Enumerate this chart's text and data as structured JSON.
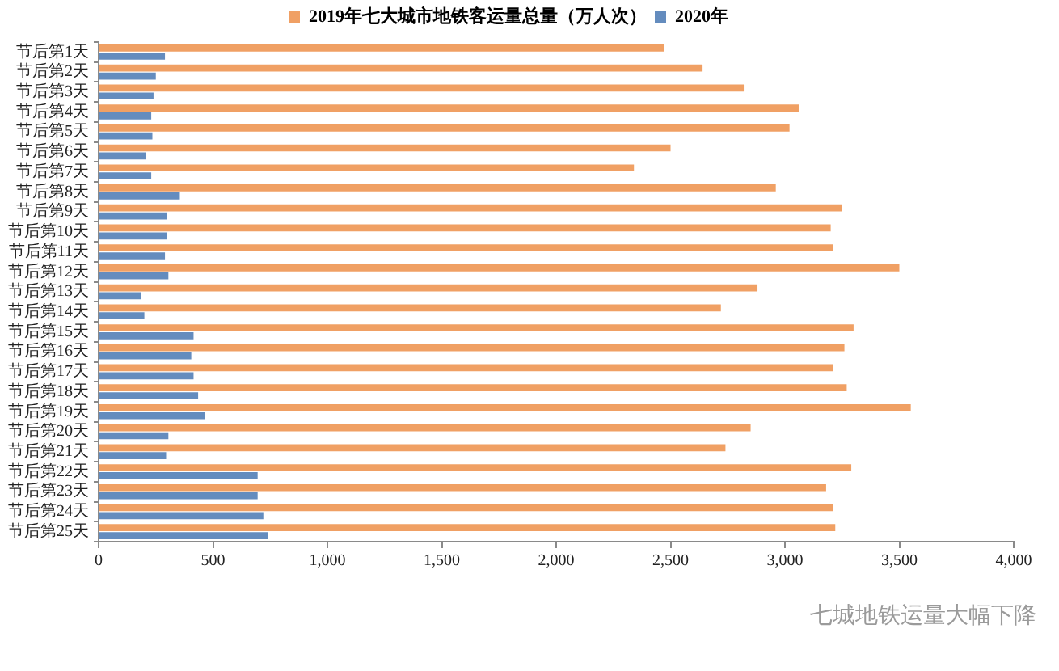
{
  "chart_data": {
    "type": "bar",
    "orientation": "horizontal",
    "categories": [
      "节后第1天",
      "节后第2天",
      "节后第3天",
      "节后第4天",
      "节后第5天",
      "节后第6天",
      "节后第7天",
      "节后第8天",
      "节后第9天",
      "节后第10天",
      "节后第11天",
      "节后第12天",
      "节后第13天",
      "节后第14天",
      "节后第15天",
      "节后第16天",
      "节后第17天",
      "节后第18天",
      "节后第19天",
      "节后第20天",
      "节后第21天",
      "节后第22天",
      "节后第23天",
      "节后第24天",
      "节后第25天"
    ],
    "series": [
      {
        "name": "2019年七大城市地铁客运量总量（万人次）",
        "color": "#f0a064",
        "values": [
          2470,
          2640,
          2820,
          3060,
          3020,
          2500,
          2340,
          2960,
          3250,
          3200,
          3210,
          3500,
          2880,
          2720,
          3300,
          3260,
          3210,
          3270,
          3550,
          2850,
          2740,
          3290,
          3180,
          3210,
          3220
        ]
      },
      {
        "name": "2020年",
        "color": "#648cbe",
        "values": [
          290,
          250,
          240,
          230,
          235,
          205,
          230,
          355,
          300,
          300,
          290,
          305,
          185,
          200,
          415,
          405,
          415,
          435,
          465,
          305,
          295,
          695,
          695,
          720,
          740
        ]
      }
    ],
    "xlim": [
      0,
      4000
    ],
    "xticks": [
      0,
      500,
      {
        "value": 1000,
        "label": "1,000"
      },
      {
        "value": 1500,
        "label": "1,500"
      },
      {
        "value": 2000,
        "label": "2,000"
      },
      {
        "value": 2500,
        "label": "2,500"
      },
      {
        "value": 3000,
        "label": "3,000"
      },
      {
        "value": 3500,
        "label": "3,500"
      },
      {
        "value": 4000,
        "label": "4,000"
      }
    ],
    "legend": "top",
    "annotations": [
      "七城地铁运量大幅下降"
    ]
  }
}
